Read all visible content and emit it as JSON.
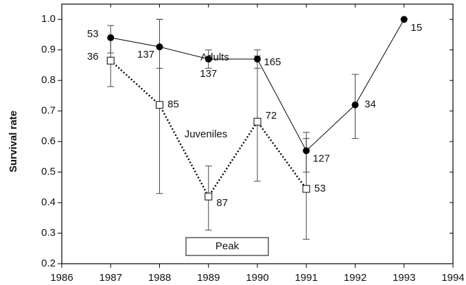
{
  "chart_data": {
    "type": "line",
    "y_label": "Survival rate",
    "xlim": [
      1986,
      1994
    ],
    "xticks": [
      1986,
      1987,
      1988,
      1989,
      1990,
      1991,
      1992,
      1993,
      1994
    ],
    "ylim": [
      0.2,
      1.05
    ],
    "yticks": [
      0.2,
      0.3,
      0.4,
      0.5,
      0.6,
      0.7,
      0.8,
      0.9,
      {
        "value": 1,
        "label": "1.0"
      }
    ],
    "annotations": [
      "Adults",
      "Juveniles",
      "Peak"
    ],
    "series": [
      {
        "name": "Adults",
        "color": "#000000",
        "marker": "circle",
        "line_style": "solid",
        "x": [
          1987,
          1988,
          1989,
          1990,
          1991,
          1992,
          1993
        ],
        "values": [
          0.94,
          0.91,
          0.87,
          0.87,
          0.57,
          0.72,
          1
        ],
        "lower": [
          0.89,
          0.84,
          0.84,
          0.84,
          0.5,
          0.61,
          1
        ],
        "upper": [
          0.98,
          1,
          0.9,
          0.9,
          0.63,
          0.82,
          1
        ],
        "n": [
          53,
          137,
          137,
          165,
          127,
          34,
          15
        ]
      },
      {
        "name": "Juveniles",
        "color": "#000000",
        "marker": "square",
        "line_style": "dotted",
        "x": [
          1987,
          1988,
          1989,
          1990,
          1991
        ],
        "values": [
          0.865,
          0.72,
          0.42,
          0.665,
          0.445
        ],
        "lower": [
          0.78,
          0.43,
          0.31,
          0.47,
          0.28
        ],
        "upper": [
          0.94,
          1,
          0.52,
          0.88,
          0.61
        ],
        "n": [
          36,
          85,
          87,
          72,
          53
        ]
      }
    ]
  }
}
